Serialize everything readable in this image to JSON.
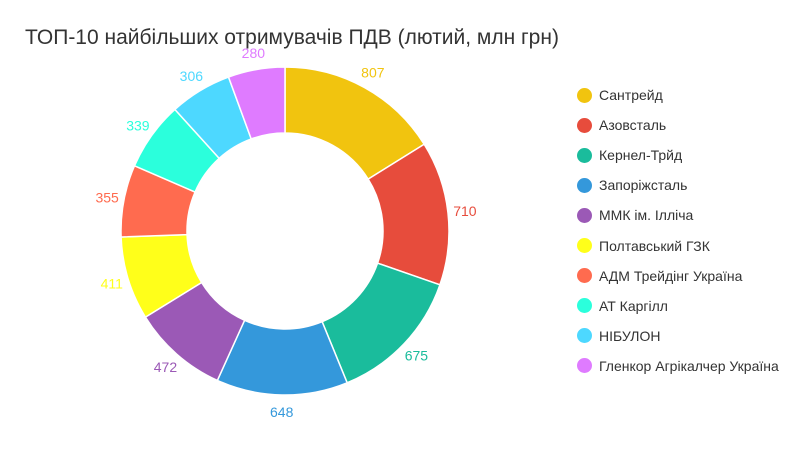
{
  "chart_data": {
    "type": "pie",
    "title": "ТОП-10 найбільших отримувачів ПДВ (лютий, млн грн)",
    "legend_position": "right",
    "categories": [
      "Сантрейд",
      "Азовсталь",
      "Кернел-Трйд",
      "Запоріжсталь",
      "ММК ім. Ілліча",
      "Полтавський ГЗК",
      "АДМ Трейдінг Україна",
      "АТ Каргілл",
      "НІБУЛОН",
      "Гленкор Агрікалчер Україна"
    ],
    "values": [
      807,
      710,
      675,
      648,
      472,
      411,
      355,
      339,
      306,
      280
    ],
    "labels": [
      "807",
      "710",
      "675",
      "648",
      "472",
      "411",
      "355",
      "339",
      "306",
      "280"
    ],
    "colors": [
      "#f1c40f",
      "#e74c3c",
      "#1abc9c",
      "#3498db",
      "#9b59b6",
      "#ffff1a",
      "#ff6b4f",
      "#2bffdc",
      "#4dd8ff",
      "#df7bff"
    ]
  }
}
